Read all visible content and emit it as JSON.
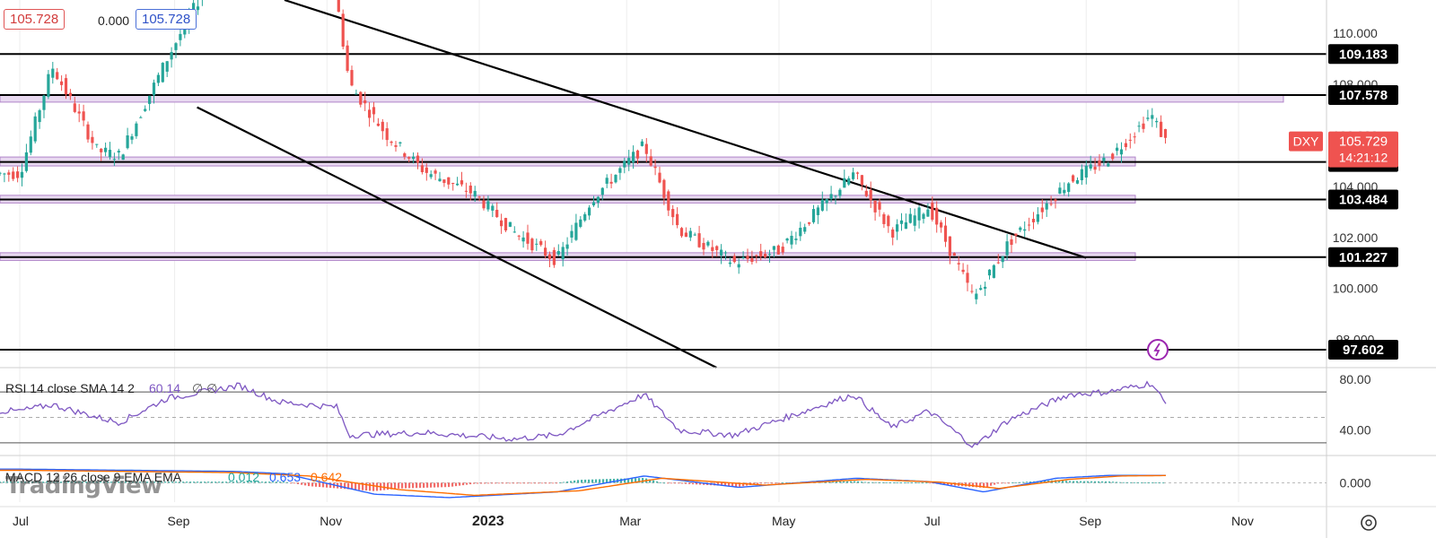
{
  "header": {
    "bid_price": "105.728",
    "spread": "0.000",
    "ask_price": "105.728"
  },
  "watermark": "TradingView",
  "symbol": {
    "ticker": "DXY",
    "last_price": "105.729",
    "countdown": "14:21:12",
    "last_value": 105.729
  },
  "colors": {
    "up": "#26a69a",
    "down": "#ef5350",
    "zone_fill": "#e8d9f0",
    "zone_border": "#b184c9",
    "rsi_line": "#7e57c2",
    "macd_line": "#2962ff",
    "signal_line": "#ff6d00",
    "price_tag": "#ef5350",
    "level_tag": "#000000"
  },
  "chart_data": [
    {
      "type": "candlestick",
      "pane": "price",
      "x_labels": [
        "Jul",
        "Sep",
        "Nov",
        "2023",
        "Mar",
        "May",
        "Jul",
        "Sep",
        "Nov"
      ],
      "y_ticks": [
        "110.000",
        "108.000",
        "106.000",
        "104.000",
        "102.000",
        "100.000",
        "98.000"
      ],
      "ylim": [
        96.9,
        111.3
      ],
      "horizontal_levels": [
        {
          "value": 109.183,
          "label": "109.183"
        },
        {
          "value": 107.578,
          "label": "107.578"
        },
        {
          "value": 104.955,
          "label": "104.955"
        },
        {
          "value": 103.484,
          "label": "103.484"
        },
        {
          "value": 101.227,
          "label": "101.227"
        },
        {
          "value": 97.602,
          "label": "97.602"
        }
      ],
      "zones": [
        {
          "low": 107.3,
          "high": 107.6
        },
        {
          "low": 104.8,
          "high": 105.15
        },
        {
          "low": 103.35,
          "high": 103.65
        },
        {
          "low": 101.1,
          "high": 101.4
        }
      ],
      "trendlines": [
        {
          "from": [
            "2022-09-10",
            107.1
          ],
          "to": [
            "2023-04-06",
            96.9
          ]
        },
        {
          "from": [
            "2022-10-15",
            111.3
          ],
          "to": [
            "2023-09-01",
            101.2
          ]
        }
      ],
      "anchor_points": [
        [
          "2022-07-01",
          104.5
        ],
        [
          "2022-07-14",
          108.7
        ],
        [
          "2022-08-01",
          105.4
        ],
        [
          "2022-08-10",
          105.2
        ],
        [
          "2022-08-29",
          109.0
        ],
        [
          "2022-09-28",
          114.5
        ],
        [
          "2022-10-13",
          113.0
        ],
        [
          "2022-11-03",
          112.5
        ],
        [
          "2022-11-10",
          108.0
        ],
        [
          "2022-11-25",
          106.0
        ],
        [
          "2022-12-10",
          104.6
        ],
        [
          "2022-12-30",
          103.7
        ],
        [
          "2023-01-15",
          102.2
        ],
        [
          "2023-02-01",
          101.1
        ],
        [
          "2023-02-15",
          103.5
        ],
        [
          "2023-03-08",
          105.6
        ],
        [
          "2023-03-22",
          102.3
        ],
        [
          "2023-04-13",
          101.0
        ],
        [
          "2023-05-01",
          101.5
        ],
        [
          "2023-05-31",
          104.5
        ],
        [
          "2023-06-15",
          102.2
        ],
        [
          "2023-06-30",
          103.2
        ],
        [
          "2023-07-18",
          99.6
        ],
        [
          "2023-08-01",
          101.8
        ],
        [
          "2023-08-25",
          104.2
        ],
        [
          "2023-09-10",
          105.1
        ],
        [
          "2023-09-27",
          106.8
        ],
        [
          "2023-10-03",
          105.73
        ]
      ]
    },
    {
      "type": "line",
      "pane": "rsi",
      "indicator": "RSI 14 close SMA 14 2",
      "value_text": "60.14",
      "extra_text": "∅ ∅",
      "ylim": [
        20,
        87
      ],
      "y_ticks": [
        "80.00",
        "40.00"
      ],
      "bands": [
        70,
        50,
        30
      ],
      "anchor_points": [
        [
          "2022-07-01",
          55
        ],
        [
          "2022-07-14",
          60
        ],
        [
          "2022-08-01",
          50
        ],
        [
          "2022-08-10",
          46
        ],
        [
          "2022-08-29",
          65
        ],
        [
          "2022-09-27",
          75
        ],
        [
          "2022-10-13",
          62
        ],
        [
          "2022-11-05",
          58
        ],
        [
          "2022-11-10",
          36
        ],
        [
          "2022-12-10",
          38
        ],
        [
          "2023-01-15",
          33
        ],
        [
          "2023-02-01",
          36
        ],
        [
          "2023-03-08",
          68
        ],
        [
          "2023-03-22",
          40
        ],
        [
          "2023-04-13",
          36
        ],
        [
          "2023-05-31",
          68
        ],
        [
          "2023-06-15",
          42
        ],
        [
          "2023-06-30",
          55
        ],
        [
          "2023-07-18",
          27
        ],
        [
          "2023-08-01",
          48
        ],
        [
          "2023-08-25",
          68
        ],
        [
          "2023-09-10",
          70
        ],
        [
          "2023-09-27",
          77
        ],
        [
          "2023-10-03",
          60.14
        ]
      ]
    },
    {
      "type": "line",
      "pane": "macd",
      "indicator": "MACD 12 26 close 9 EMA EMA",
      "values_text": [
        "0.012",
        "0.653",
        "0.642"
      ],
      "ylim": [
        -1.7,
        2.4
      ],
      "y_ticks": [
        "0.000"
      ],
      "series": [
        {
          "name": "MACD",
          "anchor_points": [
            [
              "2022-07-01",
              1.2
            ],
            [
              "2022-09-25",
              1.0
            ],
            [
              "2022-10-15",
              0.8
            ],
            [
              "2022-11-20",
              -1.0
            ],
            [
              "2022-12-20",
              -1.3
            ],
            [
              "2023-02-01",
              -0.8
            ],
            [
              "2023-03-08",
              0.6
            ],
            [
              "2023-04-15",
              -0.4
            ],
            [
              "2023-06-01",
              0.4
            ],
            [
              "2023-06-30",
              0.1
            ],
            [
              "2023-07-22",
              -0.8
            ],
            [
              "2023-08-20",
              0.4
            ],
            [
              "2023-09-10",
              0.65
            ],
            [
              "2023-10-03",
              0.653
            ]
          ]
        },
        {
          "name": "Signal",
          "anchor_points": [
            [
              "2022-07-01",
              1.1
            ],
            [
              "2022-09-25",
              0.9
            ],
            [
              "2022-10-25",
              0.6
            ],
            [
              "2022-11-30",
              -0.6
            ],
            [
              "2022-12-30",
              -1.1
            ],
            [
              "2023-02-10",
              -0.7
            ],
            [
              "2023-03-15",
              0.4
            ],
            [
              "2023-04-25",
              -0.2
            ],
            [
              "2023-06-05",
              0.3
            ],
            [
              "2023-07-05",
              0.05
            ],
            [
              "2023-07-28",
              -0.5
            ],
            [
              "2023-08-25",
              0.3
            ],
            [
              "2023-09-15",
              0.6
            ],
            [
              "2023-10-03",
              0.642
            ]
          ]
        }
      ]
    }
  ]
}
